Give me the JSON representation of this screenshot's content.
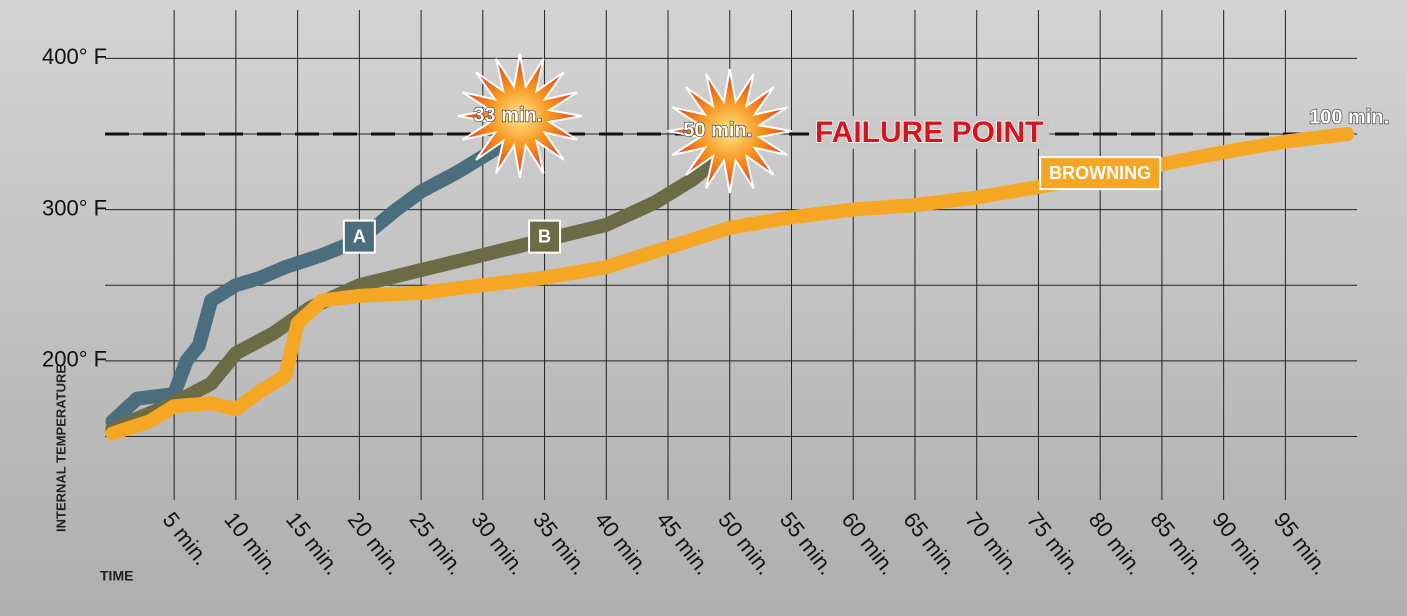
{
  "chart_data": {
    "type": "line",
    "y_label": "INTERNAL TEMPERATURE",
    "x_label": "TIME",
    "reference_line": {
      "value": 350,
      "label": "FAILURE POINT"
    },
    "xlim": [
      -0.6,
      100.8
    ],
    "xticks": [
      {
        "value": 5,
        "label": "5 min."
      },
      {
        "value": 10,
        "label": "10 min."
      },
      {
        "value": 15,
        "label": "15 min."
      },
      {
        "value": 20,
        "label": "20 min."
      },
      {
        "value": 25,
        "label": "25 min."
      },
      {
        "value": 30,
        "label": "30 min."
      },
      {
        "value": 35,
        "label": "35 min."
      },
      {
        "value": 40,
        "label": "40 min."
      },
      {
        "value": 45,
        "label": "45 min."
      },
      {
        "value": 50,
        "label": "50 min."
      },
      {
        "value": 55,
        "label": "55 min."
      },
      {
        "value": 60,
        "label": "60 min."
      },
      {
        "value": 65,
        "label": "65 min."
      },
      {
        "value": 70,
        "label": "70 min."
      },
      {
        "value": 75,
        "label": "75 min."
      },
      {
        "value": 80,
        "label": "80 min."
      },
      {
        "value": 85,
        "label": "85 min."
      },
      {
        "value": 90,
        "label": "90 min."
      },
      {
        "value": 95,
        "label": "95 min."
      }
    ],
    "ylim": [
      108,
      432
    ],
    "yticks": [
      {
        "value": 200,
        "label": "200° F"
      },
      {
        "value": 300,
        "label": "300° F"
      },
      {
        "value": 400,
        "label": "400° F"
      }
    ],
    "ygrid": [
      150,
      250,
      350
    ],
    "grid": true,
    "series": [
      {
        "name": "A",
        "color": "#4b6e7e",
        "end_label": "33 min.",
        "x": [
          0,
          2,
          5,
          6,
          7,
          8,
          10,
          12,
          14,
          17,
          20,
          23,
          25,
          28,
          31,
          33
        ],
        "values": [
          160,
          175,
          178,
          200,
          210,
          240,
          250,
          255,
          262,
          270,
          280,
          300,
          312,
          325,
          340,
          350
        ]
      },
      {
        "name": "B",
        "color": "#6b6b45",
        "end_label": "50 min.",
        "x": [
          0,
          5,
          8,
          10,
          13,
          16,
          20,
          25,
          30,
          35,
          40,
          44,
          47,
          50
        ],
        "values": [
          155,
          172,
          185,
          205,
          218,
          235,
          250,
          260,
          270,
          280,
          290,
          305,
          320,
          340
        ]
      },
      {
        "name": "BROWNING",
        "color": "#f5a623",
        "end_label": "100 min.",
        "x": [
          0,
          3,
          5,
          8,
          10,
          12,
          14,
          15,
          17,
          20,
          25,
          30,
          35,
          40,
          45,
          50,
          55,
          60,
          65,
          70,
          75,
          80,
          85,
          90,
          95,
          100
        ],
        "values": [
          152,
          160,
          170,
          172,
          168,
          180,
          190,
          225,
          240,
          243,
          245,
          250,
          255,
          262,
          275,
          288,
          295,
          300,
          303,
          308,
          315,
          322,
          330,
          338,
          345,
          350
        ]
      }
    ]
  }
}
